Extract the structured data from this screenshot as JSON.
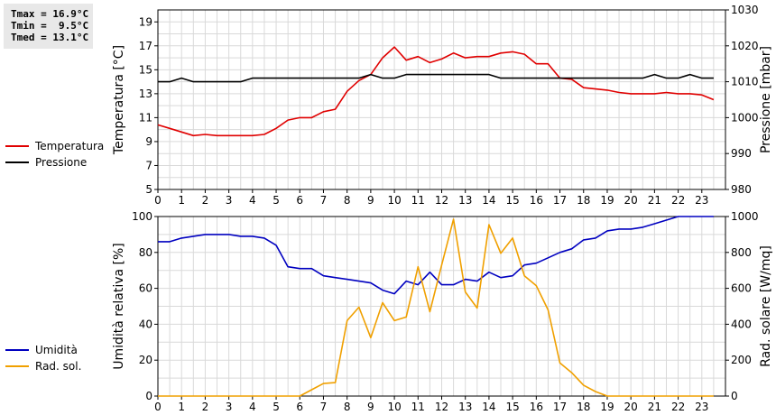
{
  "stats": {
    "tmax": "Tmax = 16.9°C",
    "tmin": "Tmin =  9.5°C",
    "tmed": "Tmed = 13.1°C"
  },
  "colors": {
    "temperature": "#e00000",
    "pressure": "#000000",
    "humidity": "#0000c0",
    "solar": "#f0a000",
    "grid": "#d9d9d9"
  },
  "chart_data": [
    {
      "type": "line",
      "grid": true,
      "x_ticks": [
        "0",
        "1",
        "2",
        "3",
        "4",
        "5",
        "6",
        "7",
        "8",
        "9",
        "10",
        "11",
        "12",
        "13",
        "14",
        "15",
        "16",
        "17",
        "18",
        "19",
        "20",
        "21",
        "22",
        "23"
      ],
      "xlim": [
        0,
        24
      ],
      "ylabel": "Temperatura [°C]",
      "ylim": [
        5,
        20
      ],
      "y_ticks": [
        "5",
        "7",
        "9",
        "11",
        "13",
        "15",
        "17",
        "19"
      ],
      "y2label": "Pressione [mbar]",
      "y2lim": [
        980,
        1030
      ],
      "y2_ticks": [
        "980",
        "990",
        "1000",
        "1010",
        "1020",
        "1030"
      ],
      "legend_position": "left",
      "series": [
        {
          "name": "Temperatura",
          "axis": "left",
          "color": "#e00000",
          "x": [
            0,
            0.5,
            1,
            1.5,
            2,
            2.5,
            3,
            3.5,
            4,
            4.5,
            5,
            5.5,
            6,
            6.5,
            7,
            7.5,
            8,
            8.5,
            9,
            9.5,
            10,
            10.5,
            11,
            11.5,
            12,
            12.5,
            13,
            13.5,
            14,
            14.5,
            15,
            15.5,
            16,
            16.5,
            17,
            17.5,
            18,
            18.5,
            19,
            19.5,
            20,
            20.5,
            21,
            21.5,
            22,
            22.5,
            23,
            23.5
          ],
          "y": [
            10.4,
            10.1,
            9.8,
            9.5,
            9.6,
            9.5,
            9.5,
            9.5,
            9.5,
            9.6,
            10.1,
            10.8,
            11.0,
            11.0,
            11.5,
            11.7,
            13.2,
            14.1,
            14.6,
            16.0,
            16.9,
            15.8,
            16.1,
            15.6,
            15.9,
            16.4,
            16.0,
            16.1,
            16.1,
            16.4,
            16.5,
            16.3,
            15.5,
            15.5,
            14.3,
            14.2,
            13.5,
            13.4,
            13.3,
            13.1,
            13.0,
            13.0,
            13.0,
            13.1,
            13.0,
            13.0,
            12.9,
            12.5
          ]
        },
        {
          "name": "Pressione",
          "axis": "right",
          "color": "#000000",
          "x": [
            0,
            0.5,
            1,
            1.5,
            2,
            2.5,
            3,
            3.5,
            4,
            4.5,
            5,
            5.5,
            6,
            6.5,
            7,
            7.5,
            8,
            8.5,
            9,
            9.5,
            10,
            10.5,
            11,
            11.5,
            12,
            12.5,
            13,
            13.5,
            14,
            14.5,
            15,
            15.5,
            16,
            16.5,
            17,
            17.5,
            18,
            18.5,
            19,
            19.5,
            20,
            20.5,
            21,
            21.5,
            22,
            22.5,
            23,
            23.5
          ],
          "y": [
            1010,
            1010,
            1011,
            1010,
            1010,
            1010,
            1010,
            1010,
            1011,
            1011,
            1011,
            1011,
            1011,
            1011,
            1011,
            1011,
            1011,
            1011,
            1012,
            1011,
            1011,
            1012,
            1012,
            1012,
            1012,
            1012,
            1012,
            1012,
            1012,
            1011,
            1011,
            1011,
            1011,
            1011,
            1011,
            1011,
            1011,
            1011,
            1011,
            1011,
            1011,
            1011,
            1012,
            1011,
            1011,
            1012,
            1011,
            1011
          ]
        }
      ]
    },
    {
      "type": "line",
      "grid": true,
      "x_ticks": [
        "0",
        "1",
        "2",
        "3",
        "4",
        "5",
        "6",
        "7",
        "8",
        "9",
        "10",
        "11",
        "12",
        "13",
        "14",
        "15",
        "16",
        "17",
        "18",
        "19",
        "20",
        "21",
        "22",
        "23"
      ],
      "xlim": [
        0,
        24
      ],
      "ylabel": "Umidità relativa [%]",
      "ylim": [
        0,
        100
      ],
      "y_ticks": [
        "0",
        "20",
        "40",
        "60",
        "80",
        "100"
      ],
      "y2label": "Rad. solare [W/mq]",
      "y2lim": [
        0,
        1000
      ],
      "y2_ticks": [
        "0",
        "200",
        "400",
        "600",
        "800",
        "1000"
      ],
      "legend_position": "left",
      "series": [
        {
          "name": "Umidità",
          "axis": "left",
          "color": "#0000c0",
          "x": [
            0,
            0.5,
            1,
            1.5,
            2,
            2.5,
            3,
            3.5,
            4,
            4.5,
            5,
            5.5,
            6,
            6.5,
            7,
            7.5,
            8,
            8.5,
            9,
            9.5,
            10,
            10.5,
            11,
            11.5,
            12,
            12.5,
            13,
            13.5,
            14,
            14.5,
            15,
            15.5,
            16,
            16.5,
            17,
            17.5,
            18,
            18.5,
            19,
            19.5,
            20,
            20.5,
            21,
            21.5,
            22,
            22.5,
            23,
            23.5
          ],
          "y": [
            86,
            86,
            88,
            89,
            90,
            90,
            90,
            89,
            89,
            88,
            84,
            72,
            71,
            71,
            67,
            66,
            65,
            64,
            63,
            59,
            57,
            64,
            62,
            69,
            62,
            62,
            65,
            64,
            69,
            66,
            67,
            73,
            74,
            77,
            80,
            82,
            87,
            88,
            92,
            93,
            93,
            94,
            96,
            98,
            100,
            100,
            100,
            100
          ]
        },
        {
          "name": "Rad. sol.",
          "axis": "right",
          "color": "#f0a000",
          "x": [
            0,
            0.5,
            1,
            1.5,
            2,
            2.5,
            3,
            3.5,
            4,
            4.5,
            5,
            5.5,
            6,
            6.5,
            7,
            7.5,
            8,
            8.5,
            9,
            9.5,
            10,
            10.5,
            11,
            11.5,
            12,
            12.5,
            13,
            13.5,
            14,
            14.5,
            15,
            15.5,
            16,
            16.5,
            17,
            17.5,
            18,
            18.5,
            19,
            19.5,
            20,
            20.5,
            21,
            21.5,
            22,
            22.5,
            23,
            23.5
          ],
          "y": [
            0,
            0,
            0,
            0,
            0,
            0,
            0,
            0,
            0,
            0,
            0,
            0,
            0,
            35,
            70,
            75,
            420,
            495,
            325,
            520,
            420,
            440,
            720,
            470,
            730,
            985,
            580,
            490,
            955,
            795,
            880,
            670,
            615,
            480,
            185,
            130,
            60,
            25,
            0,
            0,
            0,
            0,
            0,
            0,
            0,
            0,
            0,
            0
          ]
        }
      ]
    }
  ]
}
